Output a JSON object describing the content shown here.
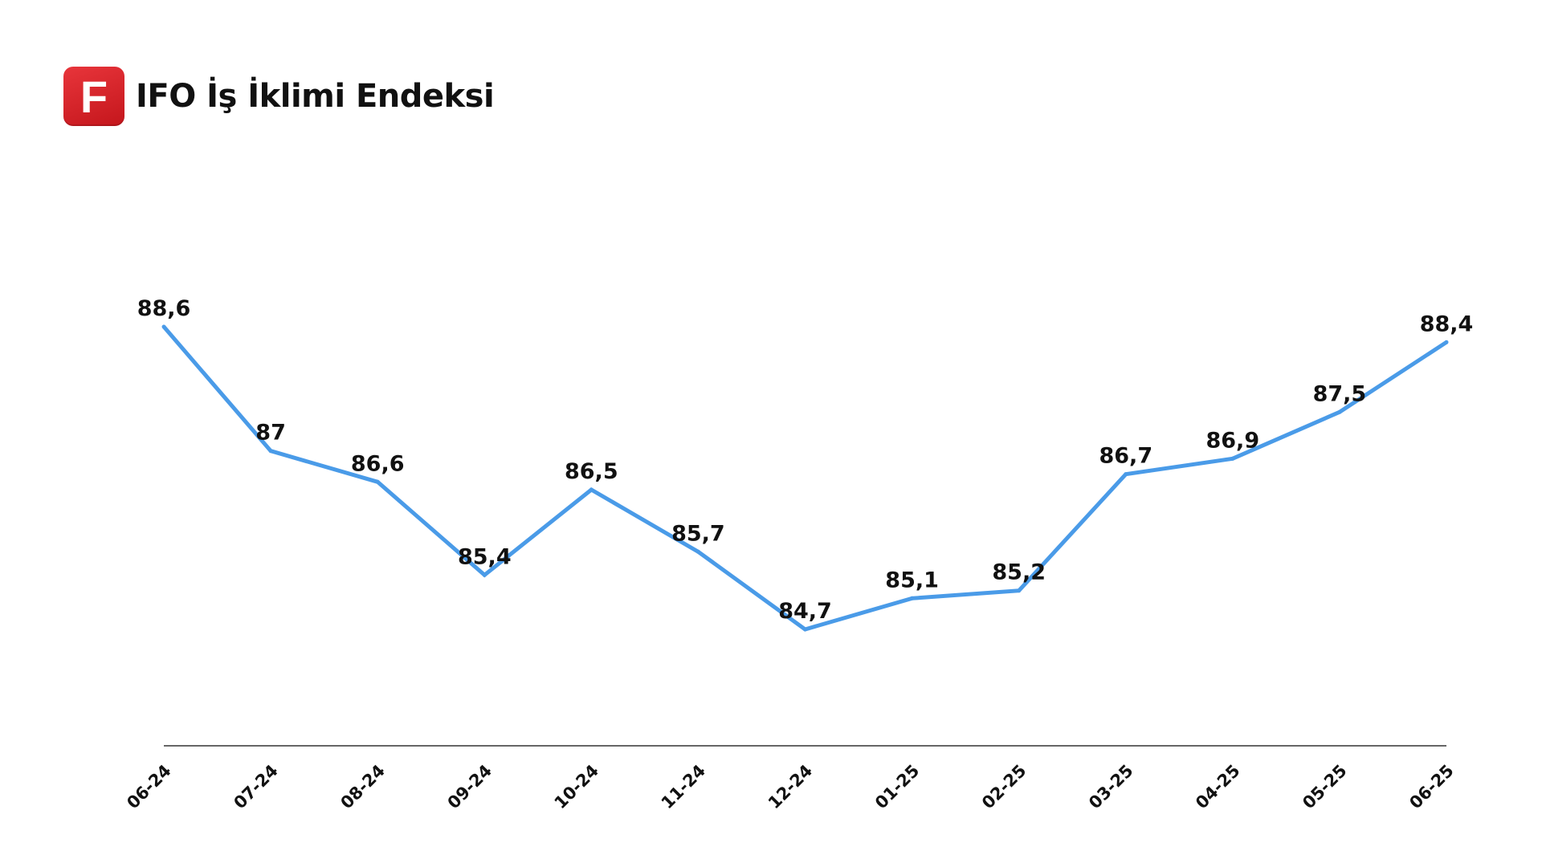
{
  "header": {
    "logo_letter": "F",
    "title": "IFO İş İklimi Endeksi"
  },
  "colors": {
    "line": "#4a9be8",
    "logo": "#d9252b",
    "text": "#111111",
    "axis": "#333333"
  },
  "chart_data": {
    "type": "line",
    "title": "IFO İş İklimi Endeksi",
    "xlabel": "",
    "ylabel": "",
    "grid": false,
    "legend": "none",
    "categories": [
      "06-24",
      "07-24",
      "08-24",
      "09-24",
      "10-24",
      "11-24",
      "12-24",
      "01-25",
      "02-25",
      "03-25",
      "04-25",
      "05-25",
      "06-25"
    ],
    "series": [
      {
        "values": [
          88.6,
          87,
          86.6,
          85.4,
          86.5,
          85.7,
          84.7,
          85.1,
          85.2,
          86.7,
          86.9,
          87.5,
          88.4
        ],
        "labels": [
          "88,6",
          "87",
          "86,6",
          "85,4",
          "86,5",
          "85,7",
          "84,7",
          "85,1",
          "85,2",
          "86,7",
          "86,9",
          "87,5",
          "88,4"
        ]
      }
    ],
    "ylim": [
      83.2,
      89.8
    ]
  }
}
